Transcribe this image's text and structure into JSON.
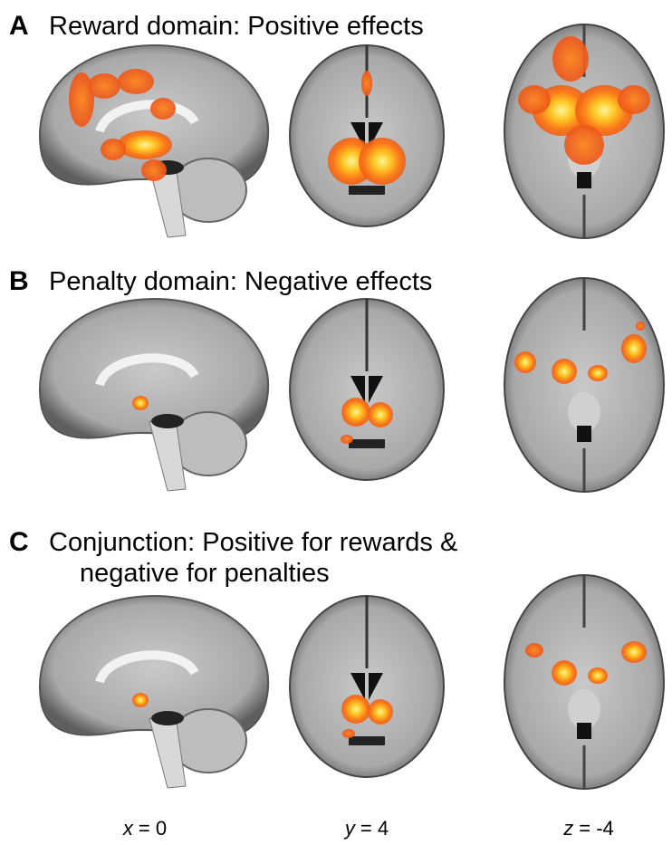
{
  "panels": [
    {
      "label": "A",
      "title": [
        "Reward domain: Positive effects"
      ]
    },
    {
      "label": "B",
      "title": [
        "Penalty domain: Negative effects"
      ]
    },
    {
      "label": "C",
      "title": [
        "Conjunction: Positive for rewards &",
        "negative for penalties"
      ]
    }
  ],
  "columns": [
    {
      "variable": "x",
      "value": "= 0"
    },
    {
      "variable": "y",
      "value": "= 4"
    },
    {
      "variable": "z",
      "value": "= -4"
    }
  ]
}
